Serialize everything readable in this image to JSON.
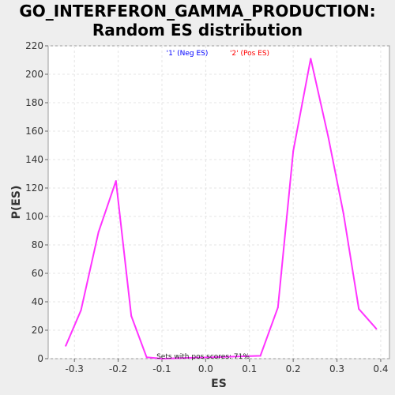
{
  "chart_data": {
    "type": "line",
    "title_line1": "GO_INTERFERON_GAMMA_PRODUCTION:",
    "title_line2": "Random ES distribution",
    "xlabel": "ES",
    "ylabel": "P(ES)",
    "xlim": [
      -0.36,
      0.42
    ],
    "ylim": [
      0,
      220
    ],
    "xticks": [
      -0.3,
      -0.2,
      -0.1,
      0.0,
      0.1,
      0.2,
      0.3,
      0.4
    ],
    "xtick_labels": [
      "-0.3",
      "-0.2",
      "-0.1",
      "0.0",
      "0.1",
      "0.2",
      "0.3",
      "0.4"
    ],
    "yticks": [
      0,
      20,
      40,
      60,
      80,
      100,
      120,
      140,
      160,
      180,
      200,
      220
    ],
    "ytick_labels": [
      "0",
      "20",
      "40",
      "60",
      "80",
      "100",
      "120",
      "140",
      "160",
      "180",
      "200",
      "220"
    ],
    "grid": true,
    "legend": [
      {
        "label": "'1' (Neg ES)",
        "color": "#0000ff"
      },
      {
        "label": "'2' (Pos ES)",
        "color": "#ff0000"
      }
    ],
    "annotation": "Sets with pos scores: 71%",
    "line_color": "#ff33ff",
    "series": [
      {
        "x": [
          -0.32,
          -0.285,
          -0.245,
          -0.205,
          -0.17,
          -0.135,
          -0.1,
          0.125,
          0.165,
          0.2,
          0.24,
          0.28,
          0.315,
          0.35,
          0.39
        ],
        "y": [
          9,
          34,
          89,
          125,
          30,
          1,
          0,
          2,
          36,
          146,
          211,
          156,
          102,
          35,
          21
        ]
      }
    ]
  }
}
